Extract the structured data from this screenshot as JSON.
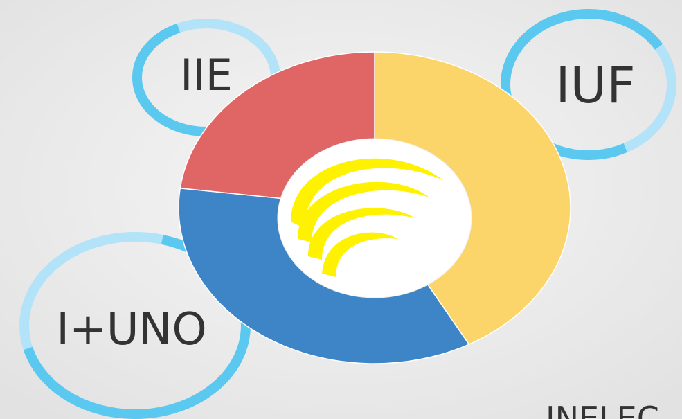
{
  "labels": [
    "IIE",
    "IUF",
    "I+UNO",
    "INELEC"
  ],
  "donut": {
    "segments": [
      {
        "color": "#fcd56a",
        "value": 42
      },
      {
        "color": "#3d85c6",
        "value": 35
      },
      {
        "color": "#e06666",
        "value": 23
      }
    ]
  }
}
